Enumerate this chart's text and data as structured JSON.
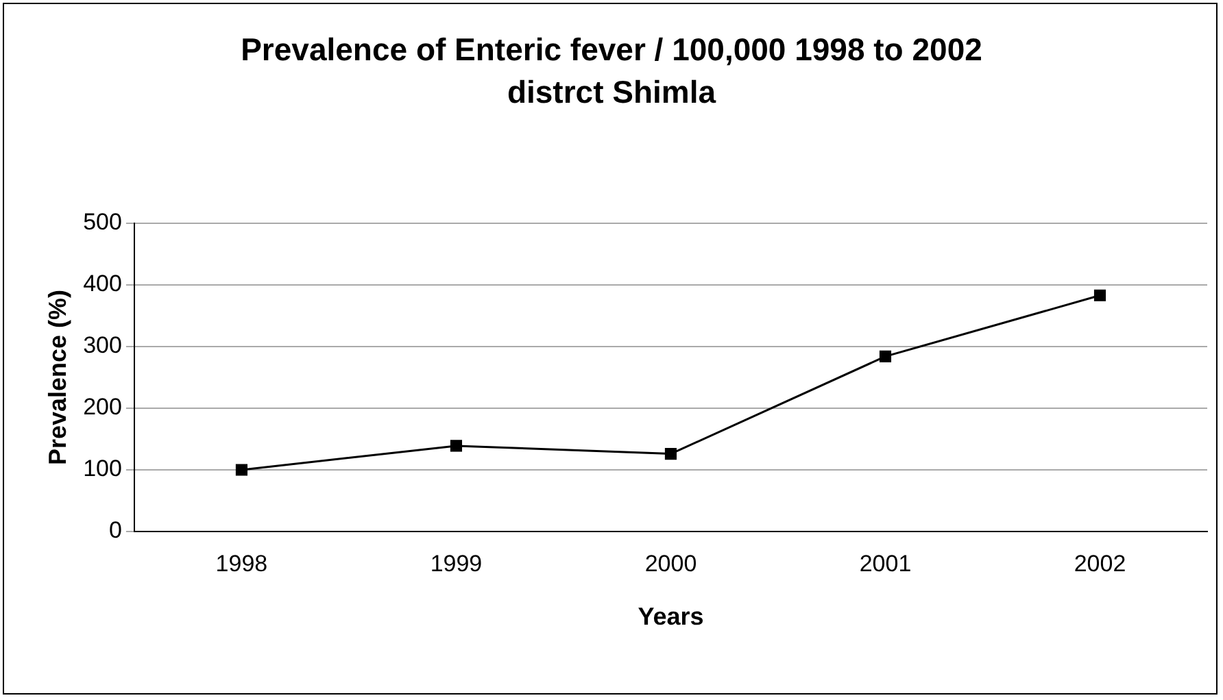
{
  "chart_data": {
    "type": "line",
    "title": "Prevalence of Enteric fever / 100,000 1998 to 2002 distrct Shimla",
    "xlabel": "Years",
    "ylabel": "Prevalence (%)",
    "categories": [
      "1998",
      "1999",
      "2000",
      "2001",
      "2002"
    ],
    "series": [
      {
        "color": "#000000",
        "values": [
          100,
          139,
          126,
          284,
          383
        ]
      }
    ],
    "ylim": [
      0,
      500
    ],
    "yticks": [
      0,
      100,
      200,
      300,
      400,
      500
    ],
    "grid": "y",
    "legend": false,
    "marker": "square",
    "line_style": "solid"
  }
}
